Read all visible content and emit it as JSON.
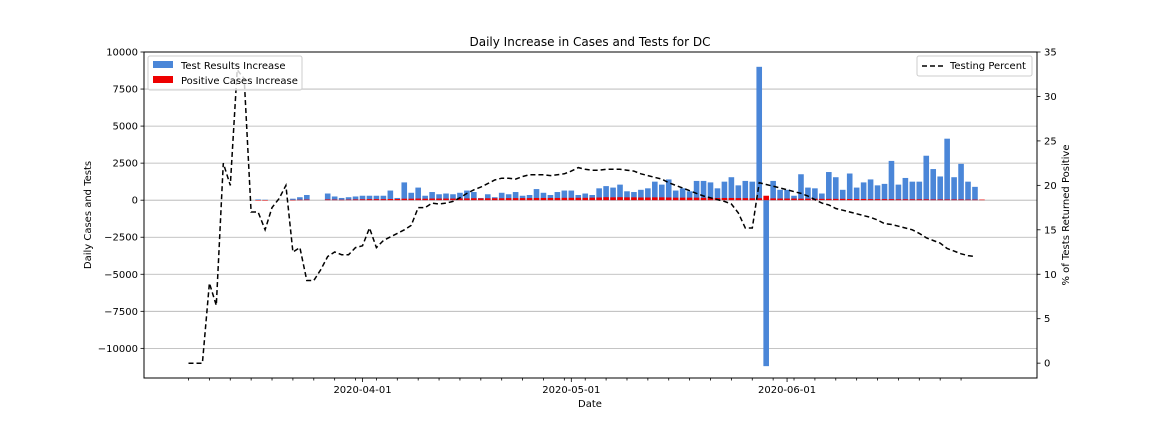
{
  "chart_data": {
    "type": "bar",
    "title": "Daily Increase in Cases and Tests for DC",
    "xlabel": "Date",
    "ylabel": "Daily Cases and Tests",
    "y2label": "% of Tests Returned Positive",
    "start_date": "2020-03-07",
    "x_ticks": [
      "2020-04-01",
      "2020-05-01",
      "2020-06-01"
    ],
    "ylim": [
      -12000,
      10000
    ],
    "y_ticks": [
      10000,
      7500,
      5000,
      2500,
      0,
      -2500,
      -5000,
      -7500,
      -10000
    ],
    "y2lim": [
      -1.67,
      35
    ],
    "y2_ticks": [
      35,
      30,
      25,
      20,
      15,
      10,
      5,
      0
    ],
    "grid": "y",
    "legend_left": "top-left",
    "legend_right": "top-right",
    "series": [
      {
        "name": "Test Results Increase",
        "kind": "bar",
        "color": "#4a86d8",
        "values": [
          0,
          0,
          0,
          0,
          0,
          0,
          0,
          0,
          0,
          0,
          50,
          30,
          0,
          0,
          0,
          100,
          200,
          350,
          0,
          0,
          450,
          250,
          150,
          200,
          250,
          300,
          300,
          300,
          300,
          650,
          150,
          1200,
          500,
          850,
          300,
          550,
          400,
          450,
          400,
          500,
          650,
          550,
          150,
          400,
          200,
          500,
          400,
          550,
          300,
          350,
          750,
          500,
          350,
          550,
          650,
          650,
          350,
          450,
          350,
          800,
          950,
          850,
          1050,
          600,
          550,
          700,
          800,
          1250,
          1050,
          1400,
          650,
          800,
          600,
          1300,
          1300,
          1200,
          800,
          1250,
          1550,
          1000,
          1300,
          1250,
          9000,
          -11200,
          1300,
          700,
          700,
          300,
          1750,
          850,
          800,
          450,
          1900,
          1550,
          700,
          1800,
          850,
          1200,
          1400,
          1000,
          1100,
          2650,
          1050,
          1500,
          1250,
          1250,
          3000,
          2100,
          1600,
          4150,
          1550,
          2450,
          1250,
          900
        ]
      },
      {
        "name": "Positive Cases Increase",
        "kind": "bar",
        "color": "#ee0000",
        "values": [
          0,
          0,
          0,
          0,
          0,
          0,
          0,
          0,
          0,
          0,
          10,
          8,
          0,
          0,
          0,
          20,
          30,
          40,
          0,
          0,
          50,
          40,
          30,
          40,
          50,
          60,
          70,
          70,
          70,
          80,
          80,
          100,
          100,
          110,
          100,
          110,
          110,
          110,
          110,
          120,
          120,
          130,
          120,
          130,
          130,
          130,
          140,
          140,
          140,
          140,
          150,
          150,
          150,
          150,
          160,
          160,
          160,
          160,
          170,
          180,
          200,
          190,
          200,
          190,
          190,
          180,
          180,
          190,
          190,
          180,
          170,
          170,
          170,
          170,
          160,
          150,
          150,
          150,
          150,
          140,
          140,
          130,
          130,
          300,
          120,
          110,
          110,
          110,
          100,
          100,
          100,
          90,
          90,
          90,
          90,
          80,
          80,
          80,
          70,
          70,
          70,
          70,
          60,
          60,
          60,
          60,
          60,
          50,
          50,
          50,
          50,
          50,
          40,
          40,
          40
        ]
      },
      {
        "name": "Testing Percent",
        "kind": "line",
        "axis": "right",
        "color": "#000000",
        "dash": "dashed",
        "values": [
          0,
          0,
          0,
          9,
          6.5,
          22.5,
          20,
          33,
          32,
          17,
          17,
          15,
          17.5,
          18.5,
          20,
          12.5,
          13,
          9.3,
          9.3,
          10.5,
          12,
          12.5,
          12.2,
          12.2,
          13,
          13.2,
          15.2,
          13,
          13.8,
          14.2,
          14.6,
          15,
          15.5,
          17.5,
          17.5,
          18,
          17.9,
          18,
          18.2,
          18.6,
          19.1,
          19.5,
          19.8,
          20.2,
          20.6,
          20.8,
          20.8,
          20.7,
          21,
          21.2,
          21.2,
          21.2,
          21.1,
          21.2,
          21.3,
          21.6,
          22,
          21.8,
          21.7,
          21.7,
          21.8,
          21.8,
          21.8,
          21.7,
          21.6,
          21.3,
          21.1,
          20.9,
          20.7,
          20.3,
          20,
          19.7,
          19.4,
          19.1,
          18.8,
          18.6,
          18.4,
          18.2,
          17.9,
          16.9,
          15.2,
          15.2,
          20.3,
          20.1,
          19.9,
          19.7,
          19.5,
          19.3,
          19.1,
          18.8,
          18.4,
          18,
          17.8,
          17.4,
          17.2,
          17,
          16.8,
          16.6,
          16.4,
          16.1,
          15.7,
          15.6,
          15.4,
          15.2,
          15,
          14.6,
          14.1,
          13.8,
          13.5,
          12.9,
          12.6,
          12.3,
          12.1,
          12
        ]
      }
    ]
  }
}
